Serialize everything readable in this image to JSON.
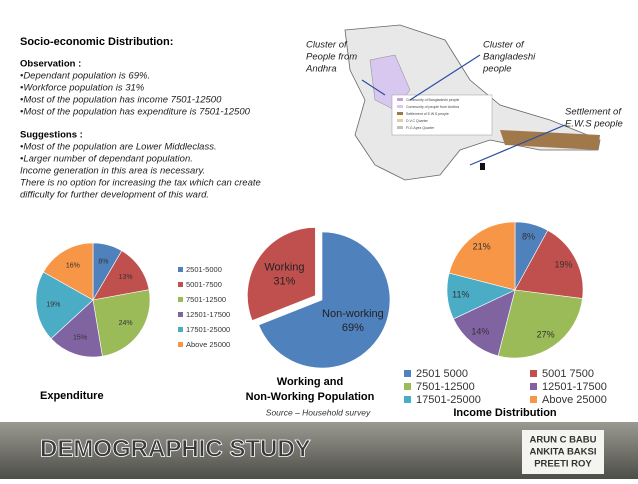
{
  "text_block": {
    "title": "Socio-economic Distribution:",
    "observation_heading": "Observation :",
    "observations": [
      "•Dependant population is 69%.",
      "•Workforce population is  31%",
      "•Most of the population has income 7501-12500",
      "•Most of the population has expenditure is 7501-12500"
    ],
    "suggestions_heading": "Suggestions :",
    "suggestions": [
      "•Most of the population are Lower Middleclass.",
      "•Larger number of dependant population.",
      "Income generation in this area is necessary.",
      "There is no option for increasing the  tax which can create",
      "difficulty for further development of this ward."
    ]
  },
  "map": {
    "callouts": [
      [
        "Cluster of",
        "People from",
        "Andhra"
      ],
      [
        "Cluster of",
        "Bangladeshi",
        "people"
      ],
      [
        "Settlement of",
        "E.W.S people"
      ]
    ],
    "legend": [
      "Community of Bangladeshi people",
      "Community of people from Andhra",
      "Settlement of E.W.S people",
      "D.V.C Quarter",
      "Fl.G Apex Quarter"
    ]
  },
  "chart_data": [
    {
      "type": "pie",
      "title": "Expenditure",
      "categories": [
        "2501-5000",
        "5001-7500",
        "7501-12500",
        "12501-17500",
        "17501-25000",
        "Above 25000"
      ],
      "values": [
        8,
        13,
        24,
        15,
        19,
        16
      ],
      "value_labels": [
        "8%",
        "13%",
        "24%",
        "15%",
        "19%",
        "16%"
      ],
      "colors": [
        "#4f81bd",
        "#c0504d",
        "#9bbb59",
        "#8064a2",
        "#4bacc6",
        "#f79646"
      ]
    },
    {
      "type": "pie",
      "title": [
        "Working and",
        "Non-Working Population"
      ],
      "source": "Source – Household survey",
      "categories": [
        "Working",
        "Non-working"
      ],
      "values": [
        31,
        69
      ],
      "value_labels": [
        "31%",
        "69%"
      ],
      "colors": [
        "#c0504d",
        "#4f81bd"
      ]
    },
    {
      "type": "pie",
      "title": "Income Distribution",
      "categories": [
        "2501 5000",
        "5001 7500",
        "7501-12500",
        "12501-17500",
        "17501-25000",
        "Above 25000"
      ],
      "values": [
        8,
        19,
        27,
        14,
        11,
        21
      ],
      "value_labels": [
        "8%",
        "19%",
        "27%",
        "14%",
        "11%",
        "21%"
      ],
      "colors": [
        "#4f81bd",
        "#c0504d",
        "#9bbb59",
        "#8064a2",
        "#4bacc6",
        "#f79646"
      ]
    }
  ],
  "footer": {
    "heading": "DEMOGRAPHIC STUDY",
    "authors": [
      "ARUN C BABU",
      "ANKITA BAKSI",
      "PREETI ROY"
    ]
  }
}
